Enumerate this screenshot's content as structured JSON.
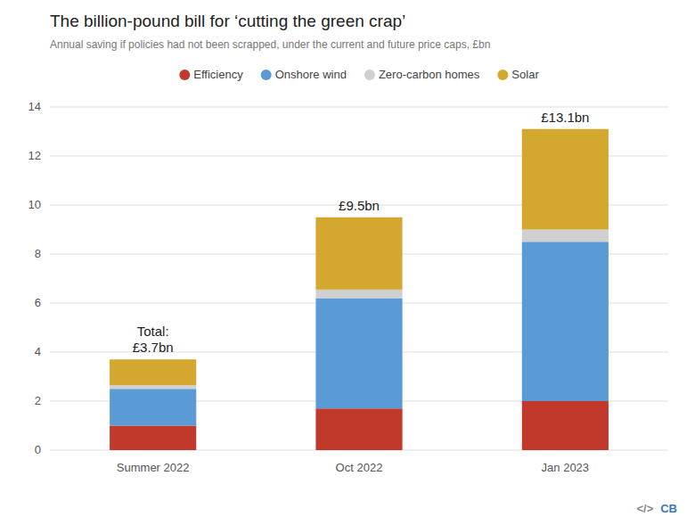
{
  "chart_data": {
    "type": "bar",
    "stacked": true,
    "title": "The billion-pound bill for ‘cutting the green crap’",
    "subtitle": "Annual saving if policies had not been scrapped, under the current and future price caps, £bn",
    "categories": [
      "Summer 2022",
      "Oct 2022",
      "Jan 2023"
    ],
    "series": [
      {
        "name": "Efficiency",
        "color": "#c0392b",
        "values": [
          1.0,
          1.7,
          2.0
        ]
      },
      {
        "name": "Onshore wind",
        "color": "#5b9bd5",
        "values": [
          1.5,
          4.5,
          6.5
        ]
      },
      {
        "name": "Zero-carbon homes",
        "color": "#d0d0d0",
        "values": [
          0.15,
          0.35,
          0.5
        ]
      },
      {
        "name": "Solar",
        "color": "#d4a82f",
        "values": [
          1.05,
          2.95,
          4.1
        ]
      }
    ],
    "annotations": [
      {
        "category": "Summer 2022",
        "text": "Total:\n£3.7bn"
      },
      {
        "category": "Oct 2022",
        "text": "£9.5bn"
      },
      {
        "category": "Jan 2023",
        "text": "£13.1bn"
      },
      {
        "text": "</>"
      },
      {
        "text": "CB"
      }
    ],
    "ylim": [
      0,
      14
    ],
    "yticks": [
      0,
      2,
      4,
      6,
      8,
      10,
      12,
      14
    ],
    "grid": true,
    "legend": "top"
  }
}
